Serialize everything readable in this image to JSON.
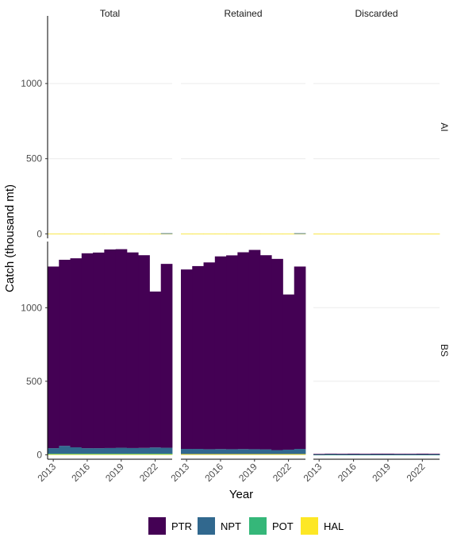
{
  "chart_data": {
    "type": "bar",
    "stacked": true,
    "xlabel": "Year",
    "ylabel": "Catch (thousand mt)",
    "x": [
      2013,
      2014,
      2015,
      2016,
      2017,
      2018,
      2019,
      2020,
      2021,
      2022,
      2023
    ],
    "x_ticks": [
      "2013",
      "2016",
      "2019",
      "2022"
    ],
    "y_ticks": [
      "0",
      "500",
      "1000"
    ],
    "ylim": [
      -30,
      1450
    ],
    "grid": true,
    "legend_position": "bottom",
    "column_facets": [
      "Total",
      "Retained",
      "Discarded"
    ],
    "row_facets": [
      "AI",
      "BS"
    ],
    "series_order": [
      "PTR",
      "NPT",
      "POT",
      "HAL"
    ],
    "colors": {
      "PTR": "#440154",
      "NPT": "#31688E",
      "POT": "#35B779",
      "HAL": "#FDE725"
    },
    "panels": [
      {
        "column": "Total",
        "row": "AI",
        "series": [
          {
            "name": "PTR",
            "values": [
              0,
              0,
              0,
              0,
              0,
              0,
              0,
              0,
              0,
              0,
              0
            ]
          },
          {
            "name": "NPT",
            "values": [
              0,
              0,
              0,
              0,
              0,
              0,
              0,
              0,
              0,
              0,
              2
            ]
          },
          {
            "name": "POT",
            "values": [
              0,
              0,
              0,
              0,
              0,
              0,
              0,
              0,
              0,
              0,
              0
            ]
          },
          {
            "name": "HAL",
            "values": [
              2,
              2,
              2,
              2,
              2,
              2,
              2,
              2,
              2,
              2,
              2
            ]
          }
        ]
      },
      {
        "column": "Retained",
        "row": "AI",
        "series": [
          {
            "name": "PTR",
            "values": [
              0,
              0,
              0,
              0,
              0,
              0,
              0,
              0,
              0,
              0,
              0
            ]
          },
          {
            "name": "NPT",
            "values": [
              0,
              0,
              0,
              0,
              0,
              0,
              0,
              0,
              0,
              0,
              2
            ]
          },
          {
            "name": "POT",
            "values": [
              0,
              0,
              0,
              0,
              0,
              0,
              0,
              0,
              0,
              0,
              0
            ]
          },
          {
            "name": "HAL",
            "values": [
              2,
              2,
              2,
              2,
              2,
              2,
              2,
              2,
              2,
              2,
              2
            ]
          }
        ]
      },
      {
        "column": "Discarded",
        "row": "AI",
        "series": [
          {
            "name": "PTR",
            "values": [
              0,
              0,
              0,
              0,
              0,
              0,
              0,
              0,
              0,
              0,
              0
            ]
          },
          {
            "name": "NPT",
            "values": [
              0,
              0,
              0,
              0,
              0,
              0,
              0,
              0,
              0,
              0,
              0
            ]
          },
          {
            "name": "POT",
            "values": [
              0,
              0,
              0,
              0,
              0,
              0,
              0,
              0,
              0,
              0,
              0
            ]
          },
          {
            "name": "HAL",
            "values": [
              1,
              1,
              1,
              1,
              1,
              1,
              1,
              1,
              1,
              1,
              1
            ]
          }
        ]
      },
      {
        "column": "Total",
        "row": "BS",
        "series": [
          {
            "name": "PTR",
            "values": [
              1235,
              1265,
              1285,
              1325,
              1330,
              1350,
              1350,
              1330,
              1310,
              1060,
              1250
            ]
          },
          {
            "name": "NPT",
            "values": [
              37,
              53,
              43,
              37,
              37,
              38,
              40,
              38,
              39,
              42,
              40
            ]
          },
          {
            "name": "POT",
            "values": [
              2,
              2,
              2,
              2,
              2,
              2,
              2,
              2,
              2,
              2,
              2
            ]
          },
          {
            "name": "HAL",
            "values": [
              6,
              6,
              6,
              6,
              6,
              6,
              6,
              6,
              6,
              6,
              6
            ]
          }
        ]
      },
      {
        "column": "Retained",
        "row": "BS",
        "series": [
          {
            "name": "PTR",
            "values": [
              1220,
              1243,
              1270,
              1310,
              1318,
              1338,
              1355,
              1320,
              1300,
              1055,
              1240
            ]
          },
          {
            "name": "NPT",
            "values": [
              35,
              35,
              33,
              34,
              33,
              34,
              33,
              32,
              27,
              30,
              35
            ]
          },
          {
            "name": "POT",
            "values": [
              0,
              0,
              0,
              0,
              0,
              0,
              0,
              0,
              0,
              0,
              0
            ]
          },
          {
            "name": "HAL",
            "values": [
              5,
              5,
              5,
              5,
              5,
              5,
              5,
              5,
              5,
              5,
              5
            ]
          }
        ]
      },
      {
        "column": "Discarded",
        "row": "BS",
        "series": [
          {
            "name": "PTR",
            "values": [
              3,
              4,
              4,
              5,
              4,
              5,
              5,
              4,
              4,
              5,
              4
            ]
          },
          {
            "name": "NPT",
            "values": [
              2,
              3,
              2,
              2,
              2,
              2,
              2,
              2,
              2,
              2,
              2
            ]
          },
          {
            "name": "POT",
            "values": [
              1,
              1,
              1,
              1,
              1,
              1,
              1,
              1,
              1,
              1,
              1
            ]
          },
          {
            "name": "HAL",
            "values": [
              0,
              0,
              0,
              0,
              0,
              0,
              0,
              0,
              0,
              0,
              0
            ]
          }
        ]
      }
    ]
  }
}
